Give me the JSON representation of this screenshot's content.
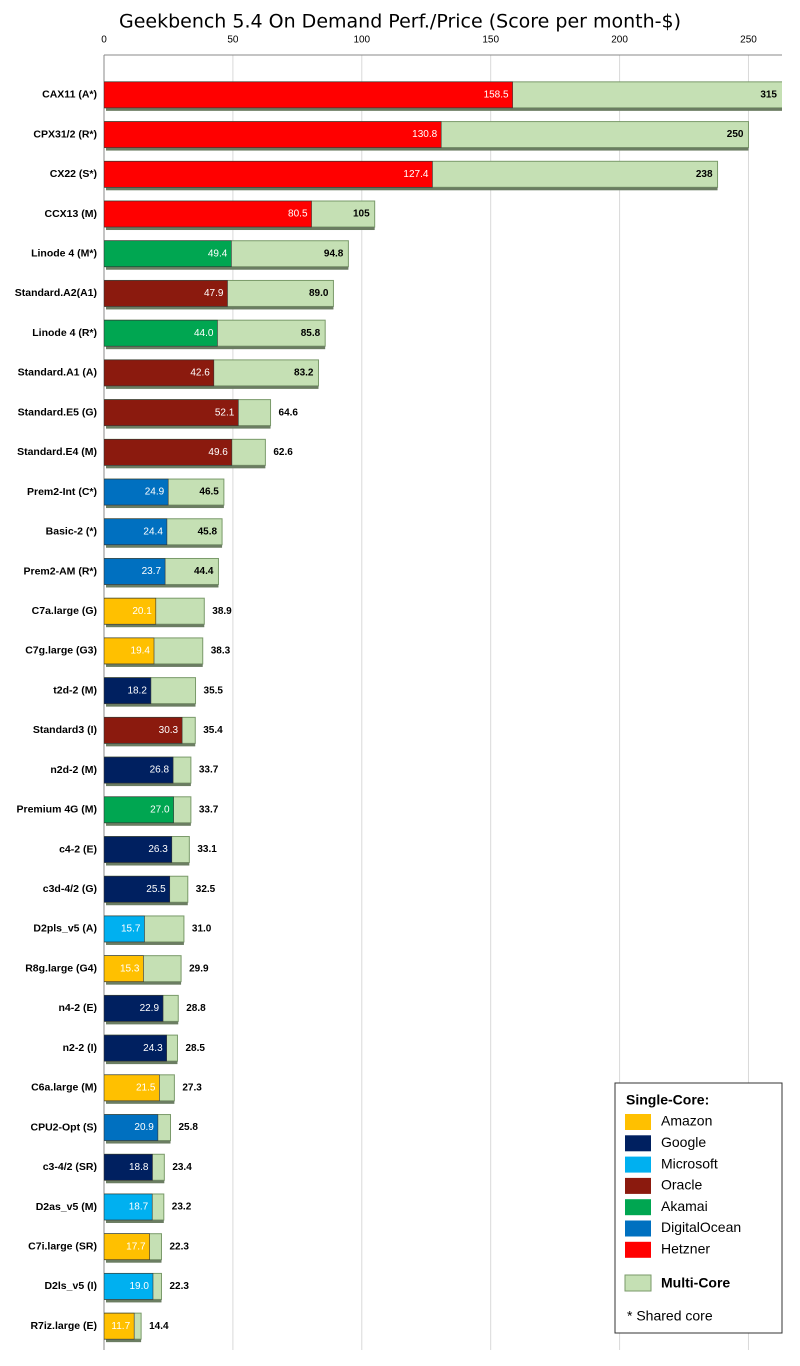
{
  "chart_data": {
    "type": "bar",
    "title": "Geekbench 5.4 On Demand Perf./Price (Score per month-$)",
    "categories": [
      "CAX11 (A*)",
      "CPX31/2 (R*)",
      "CX22 (S*)",
      "CCX13 (M)",
      "Linode 4 (M*)",
      "Standard.A2(A1)",
      "Linode 4 (R*)",
      "Standard.A1 (A)",
      "Standard.E5 (G)",
      "Standard.E4 (M)",
      "Prem2-Int (C*)",
      "Basic-2 (*)",
      "Prem2-AM (R*)",
      "C7a.large (G)",
      "C7g.large (G3)",
      "t2d-2 (M)",
      "Standard3 (I)",
      "n2d-2 (M)",
      "Premium 4G (M)",
      "c4-2 (E)",
      "c3d-4/2 (G)",
      "D2pls_v5 (A)",
      "R8g.large (G4)",
      "n4-2 (E)",
      "n2-2 (I)",
      "C6a.large (M)",
      "CPU2-Opt (S)",
      "c3-4/2 (SR)",
      "D2as_v5 (M)",
      "C7i.large (SR)",
      "D2ls_v5 (I)",
      "R7iz.large (E)"
    ],
    "series": [
      {
        "name": "Multi-Core",
        "color": "#c5e0b4",
        "values": [
          315,
          250,
          238,
          105,
          94.8,
          89.0,
          85.8,
          83.2,
          64.6,
          62.6,
          46.5,
          45.8,
          44.4,
          38.9,
          38.3,
          35.5,
          35.4,
          33.7,
          33.7,
          33.1,
          32.5,
          31.0,
          29.9,
          28.8,
          28.5,
          27.3,
          25.8,
          23.4,
          23.2,
          22.3,
          22.3,
          14.4
        ],
        "value_labels": [
          "315",
          "250",
          "238",
          "105",
          "94.8",
          "89.0",
          "85.8",
          "83.2",
          "64.6",
          "62.6",
          "46.5",
          "45.8",
          "44.4",
          "38.9",
          "38.3",
          "35.5",
          "35.4",
          "33.7",
          "33.7",
          "33.1",
          "32.5",
          "31.0",
          "29.9",
          "28.8",
          "28.5",
          "27.3",
          "25.8",
          "23.4",
          "23.2",
          "22.3",
          "22.3",
          "14.4"
        ]
      },
      {
        "name": "Single-Core:",
        "values": [
          158.5,
          130.8,
          127.4,
          80.5,
          49.4,
          47.9,
          44.0,
          42.6,
          52.1,
          49.6,
          24.9,
          24.4,
          23.7,
          20.1,
          19.4,
          18.2,
          30.3,
          26.8,
          27.0,
          26.3,
          25.5,
          15.7,
          15.3,
          22.9,
          24.3,
          21.5,
          20.9,
          18.8,
          18.7,
          17.7,
          19.0,
          11.7
        ],
        "value_labels": [
          "158.5",
          "130.8",
          "127.4",
          "80.5",
          "49.4",
          "47.9",
          "44.0",
          "42.6",
          "52.1",
          "49.6",
          "24.9",
          "24.4",
          "23.7",
          "20.1",
          "19.4",
          "18.2",
          "30.3",
          "26.8",
          "27.0",
          "26.3",
          "25.5",
          "15.7",
          "15.3",
          "22.9",
          "24.3",
          "21.5",
          "20.9",
          "18.8",
          "18.7",
          "17.7",
          "19.0",
          "11.7"
        ],
        "provider": [
          "Hetzner",
          "Hetzner",
          "Hetzner",
          "Hetzner",
          "Akamai",
          "Oracle",
          "Akamai",
          "Oracle",
          "Oracle",
          "Oracle",
          "DigitalOcean",
          "DigitalOcean",
          "DigitalOcean",
          "Amazon",
          "Amazon",
          "Google",
          "Oracle",
          "Google",
          "Akamai",
          "Google",
          "Google",
          "Microsoft",
          "Amazon",
          "Google",
          "Google",
          "Amazon",
          "DigitalOcean",
          "Google",
          "Microsoft",
          "Amazon",
          "Microsoft",
          "Amazon"
        ]
      }
    ],
    "providers": [
      {
        "name": "Amazon",
        "color": "#ffc000"
      },
      {
        "name": "Google",
        "color": "#002060"
      },
      {
        "name": "Microsoft",
        "color": "#00b0f0"
      },
      {
        "name": "Oracle",
        "color": "#8b1a0e"
      },
      {
        "name": "Akamai",
        "color": "#00a651"
      },
      {
        "name": "DigitalOcean",
        "color": "#0070c0"
      },
      {
        "name": "Hetzner",
        "color": "#ff0000"
      }
    ],
    "note": "* Shared core",
    "xlim": [
      0,
      263
    ],
    "xticks": [
      0,
      50,
      100,
      150,
      200,
      250
    ],
    "grid": true
  }
}
